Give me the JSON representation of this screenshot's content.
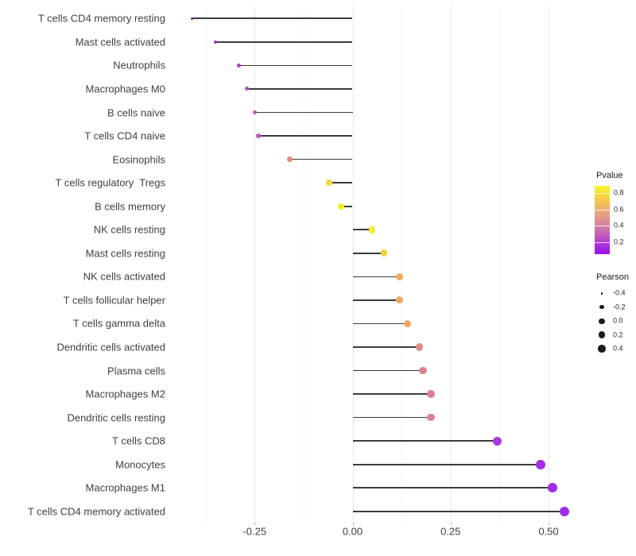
{
  "chart_data": {
    "type": "scatter",
    "variant": "lollipop",
    "title": "",
    "xlabel": "",
    "ylabel": "",
    "x_axis": {
      "range": [
        -0.459,
        0.614
      ],
      "tick_labels": [
        "-0.25",
        "0.00",
        "0.25",
        "0.50"
      ],
      "tick_values": [
        -0.25,
        0.0,
        0.25,
        0.5
      ],
      "minor_tick_values": [
        -0.375,
        -0.125,
        0.125,
        0.375
      ],
      "grid": "vertical-only"
    },
    "points": [
      {
        "label": "T cells CD4 memory resting",
        "pearson": -0.41,
        "color": "#8B1FC4",
        "diameter": 2.6
      },
      {
        "label": "Mast cells activated",
        "pearson": -0.35,
        "color": "#9D33C9",
        "diameter": 3.9
      },
      {
        "label": "Neutrophils",
        "pearson": -0.29,
        "color": "#AC40C6",
        "diameter": 4.8
      },
      {
        "label": "Macrophages M0",
        "pearson": -0.27,
        "color": "#B54BC2",
        "diameter": 5.1
      },
      {
        "label": "B cells naive",
        "pearson": -0.25,
        "color": "#BC53BF",
        "diameter": 5.4
      },
      {
        "label": "T cells CD4 naive",
        "pearson": -0.24,
        "color": "#BE57BE",
        "diameter": 5.6
      },
      {
        "label": "Eosinophils",
        "pearson": -0.16,
        "color": "#E08E82",
        "diameter": 6.5
      },
      {
        "label": "T cells regulatory  Tregs",
        "pearson": -0.06,
        "color": "#F2D838",
        "diameter": 7.5
      },
      {
        "label": "B cells memory",
        "pearson": -0.03,
        "color": "#F5F018",
        "diameter": 7.8
      },
      {
        "label": "NK cells resting",
        "pearson": 0.05,
        "color": "#F6EC30",
        "diameter": 8.5
      },
      {
        "label": "Mast cells resting",
        "pearson": 0.08,
        "color": "#F2D33F",
        "diameter": 8.7
      },
      {
        "label": "NK cells activated",
        "pearson": 0.12,
        "color": "#EFAC60",
        "diameter": 9.1
      },
      {
        "label": "T cells follicular helper",
        "pearson": 0.12,
        "color": "#EEA962",
        "diameter": 9.1
      },
      {
        "label": "T cells gamma delta",
        "pearson": 0.14,
        "color": "#EDA768",
        "diameter": 9.2
      },
      {
        "label": "Dendritic cells activated",
        "pearson": 0.17,
        "color": "#E18C8C",
        "diameter": 9.4
      },
      {
        "label": "Plasma cells",
        "pearson": 0.18,
        "color": "#DE8495",
        "diameter": 9.5
      },
      {
        "label": "Macrophages M2",
        "pearson": 0.2,
        "color": "#DC7F9B",
        "diameter": 9.7
      },
      {
        "label": "Dendritic cells resting",
        "pearson": 0.2,
        "color": "#DB7E9D",
        "diameter": 9.7
      },
      {
        "label": "T cells CD8",
        "pearson": 0.37,
        "color": "#A837DC",
        "diameter": 10.9
      },
      {
        "label": "Monocytes",
        "pearson": 0.48,
        "color": "#A42FE3",
        "diameter": 11.6
      },
      {
        "label": "Macrophages M1",
        "pearson": 0.51,
        "color": "#A32BE6",
        "diameter": 11.8
      },
      {
        "label": "T cells CD4 memory activated",
        "pearson": 0.54,
        "color": "#A32BE8",
        "diameter": 12.2
      }
    ],
    "legends": {
      "pvalue": {
        "title": "Pvalue",
        "tick_labels": [
          "0.8",
          "0.6",
          "0.4",
          "0.2"
        ],
        "tick_values": [
          0.8,
          0.6,
          0.4,
          0.2
        ],
        "gradient_stops_bottom_to_top": [
          "#9712EA",
          "#A72DE0",
          "#BE54C4",
          "#D077A8",
          "#DE9290",
          "#E9A878",
          "#F2C055",
          "#F8DC3B",
          "#FAF626"
        ]
      },
      "pearson": {
        "title": "Pearson",
        "entries": [
          {
            "label": "-0.4",
            "diameter": 2.7
          },
          {
            "label": "-0.2",
            "diameter": 5.3
          },
          {
            "label": "0.0",
            "diameter": 7.2
          },
          {
            "label": "0.2",
            "diameter": 8.6
          },
          {
            "label": "0.4",
            "diameter": 9.6
          }
        ]
      }
    },
    "colors": {
      "stem": "#3C3C3C",
      "axis_text": "#404040",
      "grid_major": "#E9E9E9",
      "grid_minor": "#F4F4F4",
      "background": "#FFFFFF",
      "legend_dot": "#1A1A1A"
    }
  }
}
